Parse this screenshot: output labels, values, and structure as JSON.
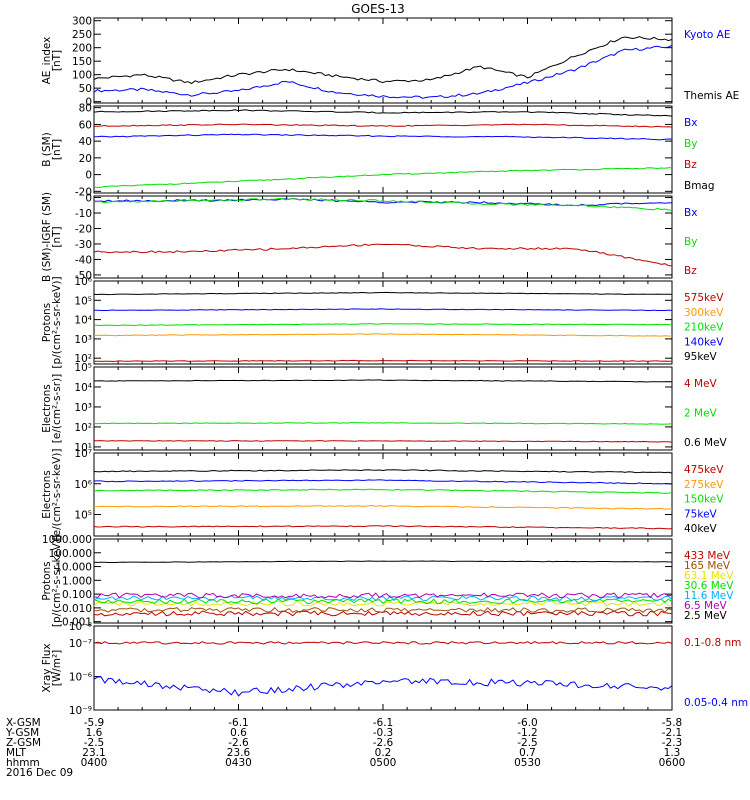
{
  "title": "GOES-13",
  "colors": {
    "black": "#000000",
    "blue": "#0000ff",
    "green": "#00e000",
    "red": "#c00000",
    "orange": "#ff9900",
    "yellow": "#e6e600",
    "cyan": "#00b0ff",
    "purple": "#b000b0",
    "brown": "#a05000"
  },
  "chart_data": [
    {
      "type": "line",
      "ylabel": [
        "AE_index",
        "[nT]"
      ],
      "yscale": "linear",
      "ylim": [
        -5,
        310
      ],
      "yticks": [
        0,
        50,
        100,
        150,
        200,
        250,
        300
      ],
      "yticklabels": [
        "0",
        "50",
        "100",
        "150",
        "200",
        "250",
        "300"
      ],
      "series": [
        {
          "name": "Kyoto AE",
          "color": "blue",
          "x": [
            0,
            10,
            20,
            30,
            40,
            50,
            60,
            70,
            80,
            90,
            100,
            110,
            120
          ],
          "values": [
            40,
            45,
            25,
            40,
            75,
            35,
            20,
            15,
            30,
            70,
            120,
            190,
            205
          ]
        },
        {
          "name": "Themis AE",
          "color": "black",
          "x": [
            0,
            10,
            20,
            30,
            40,
            50,
            60,
            70,
            80,
            90,
            100,
            110,
            120
          ],
          "values": [
            85,
            100,
            70,
            100,
            120,
            95,
            75,
            80,
            130,
            90,
            170,
            240,
            230
          ]
        }
      ]
    },
    {
      "type": "line",
      "ylabel": [
        "B (SM)",
        "[nT]"
      ],
      "yscale": "linear",
      "ylim": [
        -22,
        82
      ],
      "yticks": [
        -20,
        0,
        20,
        40,
        60,
        80
      ],
      "yticklabels": [
        "-20",
        "0",
        "20",
        "40",
        "60",
        "80"
      ],
      "series": [
        {
          "name": "Bx",
          "color": "blue",
          "x": [
            0,
            30,
            60,
            90,
            120
          ],
          "values": [
            45,
            48,
            46,
            45,
            42
          ]
        },
        {
          "name": "By",
          "color": "green",
          "x": [
            0,
            30,
            60,
            90,
            120
          ],
          "values": [
            -15,
            -8,
            0,
            5,
            8
          ]
        },
        {
          "name": "Bz",
          "color": "red",
          "x": [
            0,
            30,
            60,
            90,
            120
          ],
          "values": [
            58,
            60,
            58,
            60,
            57
          ]
        },
        {
          "name": "Bmag",
          "color": "black",
          "x": [
            0,
            30,
            60,
            90,
            120
          ],
          "values": [
            75,
            77,
            74,
            75,
            70
          ]
        }
      ]
    },
    {
      "type": "line",
      "ylabel": [
        "B (SM)-IGRF (SM)",
        "[nT]"
      ],
      "yscale": "linear",
      "ylim": [
        -52,
        1
      ],
      "yticks": [
        -50,
        -40,
        -30,
        -20,
        -10,
        0
      ],
      "yticklabels": [
        "-50",
        "-40",
        "-30",
        "-20",
        "-10",
        "0"
      ],
      "series": [
        {
          "name": "Bx",
          "color": "blue",
          "x": [
            0,
            20,
            40,
            60,
            80,
            100,
            120
          ],
          "values": [
            -2,
            -2,
            -1,
            -3,
            -3,
            -5,
            -3
          ]
        },
        {
          "name": "By",
          "color": "green",
          "x": [
            0,
            20,
            40,
            60,
            80,
            100,
            120
          ],
          "values": [
            -3,
            -2,
            -1,
            -2,
            -4,
            -5,
            -8
          ]
        },
        {
          "name": "Bz",
          "color": "red",
          "x": [
            0,
            20,
            40,
            60,
            80,
            100,
            120
          ],
          "values": [
            -35,
            -35,
            -33,
            -30,
            -33,
            -33,
            -44
          ]
        }
      ]
    },
    {
      "type": "line",
      "ylabel": [
        "Protons",
        "[p/(cm²-s-sr-keV)]"
      ],
      "yscale": "log",
      "ylim": [
        50,
        1000000
      ],
      "yticks": [
        100,
        1000,
        10000,
        100000,
        1000000
      ],
      "yticklabels": [
        "10²",
        "10³",
        "10⁴",
        "10⁵",
        "10⁶"
      ],
      "series": [
        {
          "name": "575keV",
          "color": "red",
          "x": [
            0,
            60,
            120
          ],
          "values": [
            70,
            75,
            70
          ]
        },
        {
          "name": "300keV",
          "color": "orange",
          "x": [
            0,
            60,
            120
          ],
          "values": [
            1500,
            1800,
            1400
          ]
        },
        {
          "name": "210keV",
          "color": "green",
          "x": [
            0,
            60,
            120
          ],
          "values": [
            5000,
            6000,
            5500
          ]
        },
        {
          "name": "140keV",
          "color": "blue",
          "x": [
            0,
            60,
            120
          ],
          "values": [
            30000,
            35000,
            30000
          ]
        },
        {
          "name": "95keV",
          "color": "black",
          "x": [
            0,
            60,
            120
          ],
          "values": [
            200000,
            250000,
            200000
          ]
        }
      ]
    },
    {
      "type": "line",
      "ylabel": [
        "Electrons",
        "[e/(cm²-s-sr)]"
      ],
      "yscale": "log",
      "ylim": [
        7,
        100000
      ],
      "yticks": [
        10,
        100,
        1000,
        10000,
        100000
      ],
      "yticklabels": [
        "10¹",
        "10²",
        "10³",
        "10⁴",
        "10⁵"
      ],
      "series": [
        {
          "name": "4 MeV",
          "color": "red",
          "x": [
            0,
            60,
            120
          ],
          "values": [
            20,
            20,
            18
          ]
        },
        {
          "name": "2 MeV",
          "color": "green",
          "x": [
            0,
            60,
            120
          ],
          "values": [
            150,
            160,
            140
          ]
        },
        {
          "name": "0.6 MeV",
          "color": "black",
          "x": [
            0,
            60,
            120
          ],
          "values": [
            20000,
            22000,
            18000
          ]
        }
      ]
    },
    {
      "type": "line",
      "ylabel": [
        "Electrons",
        "[e/(cm²-s-sr-keV)]"
      ],
      "yscale": "log",
      "ylim": [
        20000,
        10000000
      ],
      "yticks": [
        100000,
        1000000,
        10000000
      ],
      "yticklabels": [
        "10⁵",
        "10⁶",
        "10⁷"
      ],
      "series": [
        {
          "name": "475keV",
          "color": "red",
          "x": [
            0,
            60,
            120
          ],
          "values": [
            40000,
            42000,
            35000
          ]
        },
        {
          "name": "275keV",
          "color": "orange",
          "x": [
            0,
            60,
            120
          ],
          "values": [
            180000,
            190000,
            150000
          ]
        },
        {
          "name": "150keV",
          "color": "green",
          "x": [
            0,
            60,
            120
          ],
          "values": [
            600000,
            650000,
            500000
          ]
        },
        {
          "name": "75keV",
          "color": "blue",
          "x": [
            0,
            60,
            120
          ],
          "values": [
            1200000,
            1300000,
            1000000
          ]
        },
        {
          "name": "40keV",
          "color": "black",
          "x": [
            0,
            60,
            120
          ],
          "values": [
            2500000,
            2800000,
            2300000
          ]
        }
      ]
    },
    {
      "type": "line",
      "ylabel": [
        "Protons",
        "[p/(cm²-s-sr-keV)]"
      ],
      "yscale": "log",
      "ylim": [
        0.0008,
        1000
      ],
      "yticks": [
        0.001,
        0.01,
        0.1,
        1,
        10,
        100,
        1000
      ],
      "yticklabels": [
        "0.001",
        "0.010",
        "0.100",
        "1.000",
        "10.000",
        "100.000",
        "1000.000"
      ],
      "series": [
        {
          "name": "433 MeV",
          "color": "red",
          "x": [
            0,
            60,
            120
          ],
          "values": [
            0.004,
            0.004,
            0.004
          ]
        },
        {
          "name": "165 MeV",
          "color": "brown",
          "x": [
            0,
            60,
            120
          ],
          "values": [
            0.007,
            0.007,
            0.007
          ]
        },
        {
          "name": "63.1 MeV",
          "color": "yellow",
          "x": [
            0,
            60,
            120
          ],
          "values": [
            0.02,
            0.02,
            0.02
          ]
        },
        {
          "name": "30.6 MeV",
          "color": "green",
          "x": [
            0,
            60,
            120
          ],
          "values": [
            0.03,
            0.03,
            0.03
          ]
        },
        {
          "name": "11.6 MeV",
          "color": "cyan",
          "x": [
            0,
            60,
            120
          ],
          "values": [
            0.05,
            0.05,
            0.05
          ]
        },
        {
          "name": "6.5 MeV",
          "color": "purple",
          "x": [
            0,
            60,
            120
          ],
          "values": [
            0.08,
            0.08,
            0.08
          ]
        },
        {
          "name": "2.5 MeV",
          "color": "black",
          "x": [
            0,
            60,
            120
          ],
          "values": [
            20,
            25,
            22
          ]
        }
      ]
    },
    {
      "type": "line",
      "ylabel": [
        "Xray Flux",
        "[W/m²]"
      ],
      "yscale": "log",
      "ylim": [
        1e-09,
        1e-08
      ],
      "yticks": [
        1e-09,
        1e-08
      ],
      "yticklabels": [
        "10⁻⁹",
        "10⁻⁸"
      ],
      "extra_ticks": [
        {
          "value": 2.5e-09,
          "label": "10⁻⁶"
        },
        {
          "value": 6.3e-09,
          "label": "10⁻⁷"
        }
      ],
      "series": [
        {
          "name": "0.1-0.8 nm",
          "color": "red",
          "x": [
            0,
            60,
            120
          ],
          "values": [
            6.3e-09,
            6.3e-09,
            6.3e-09
          ]
        },
        {
          "name": "0.05-0.4 nm",
          "color": "blue",
          "x": [
            0,
            30,
            60,
            90,
            120
          ],
          "values": [
            2.3e-09,
            1.6e-09,
            2.2e-09,
            2.1e-09,
            1.8e-09
          ]
        }
      ]
    }
  ],
  "xaxis": {
    "range": [
      0,
      120
    ],
    "major": [
      0,
      30,
      60,
      90,
      120
    ],
    "rows": [
      {
        "label": "X-GSM",
        "values": [
          "-5.9",
          "-6.1",
          "-6.1",
          "-6.0",
          "-5.8"
        ]
      },
      {
        "label": "Y-GSM",
        "values": [
          "1.6",
          "0.6",
          "-0.3",
          "-1.2",
          "-2.1"
        ]
      },
      {
        "label": "Z-GSM",
        "values": [
          "-2.5",
          "-2.6",
          "-2.6",
          "-2.5",
          "-2.3"
        ]
      },
      {
        "label": "MLT",
        "values": [
          "23.1",
          "23.6",
          "0.2",
          "0.7",
          "1.3"
        ]
      },
      {
        "label": "hhmm",
        "values": [
          "0400",
          "0430",
          "0500",
          "0530",
          "0600"
        ]
      }
    ],
    "date": "2016 Dec 09"
  }
}
